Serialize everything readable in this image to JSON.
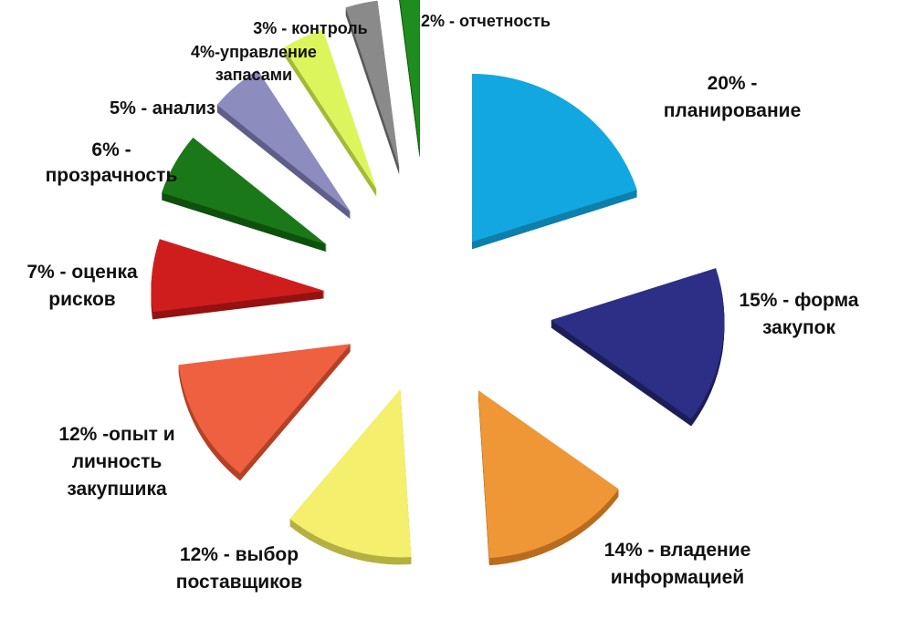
{
  "chart_data": {
    "type": "pie",
    "style": "exploded 3d",
    "slices": [
      {
        "label_lines": [
          "20% -",
          "планирование"
        ],
        "value": 20,
        "color": "#12a7e0",
        "side": "#0f7fab"
      },
      {
        "label_lines": [
          "15% - форма",
          "закупок"
        ],
        "value": 15,
        "color": "#2c2f85",
        "side": "#1c1e5a"
      },
      {
        "label_lines": [
          "14% - владение",
          "информацией"
        ],
        "value": 14,
        "color": "#ef9636",
        "side": "#b86c1e"
      },
      {
        "label_lines": [
          "12% - выбор",
          "поставщиков"
        ],
        "value": 12,
        "color": "#f4ef6c",
        "side": "#b5b042"
      },
      {
        "label_lines": [
          "12% -опыт и",
          "личность",
          "закупшика"
        ],
        "value": 12,
        "color": "#ef6040",
        "side": "#b34228"
      },
      {
        "label_lines": [
          "7% - оценка",
          "рисков"
        ],
        "value": 7,
        "color": "#cf1d1d",
        "side": "#951212"
      },
      {
        "label_lines": [
          "6% -",
          "прозрачность"
        ],
        "value": 6,
        "color": "#1a7818",
        "side": "#0f500e"
      },
      {
        "label_lines": [
          "5% - анализ"
        ],
        "value": 5,
        "color": "#8c8cbe",
        "side": "#5f5f8c"
      },
      {
        "label_lines": [
          "4%-управление",
          "запасами"
        ],
        "value": 4,
        "color": "#dcf55c",
        "side": "#a4b83a"
      },
      {
        "label_lines": [
          "3% - контроль"
        ],
        "value": 3,
        "color": "#8a8a8a",
        "side": "#5a5a5a"
      },
      {
        "label_lines": [
          "2% - отчетность"
        ],
        "value": 2,
        "color": "#1e8c1e",
        "side": "#0f5c0f"
      }
    ]
  }
}
